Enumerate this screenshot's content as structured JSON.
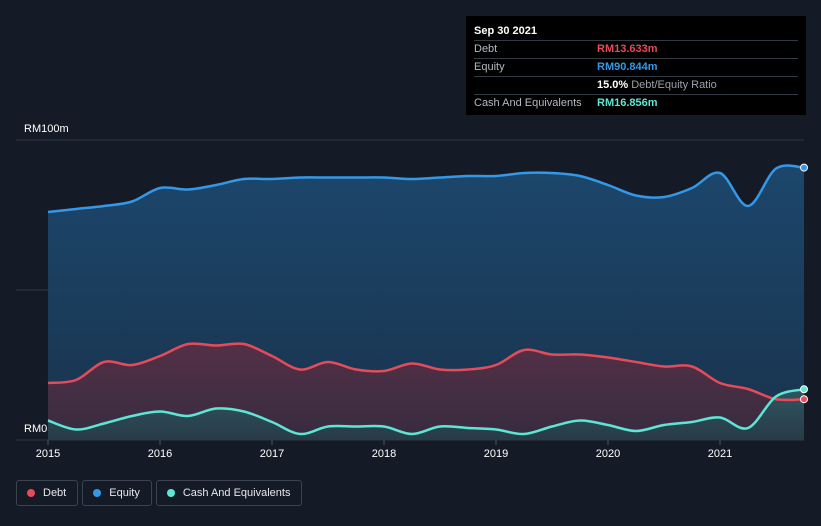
{
  "tooltip": {
    "date": "Sep 30 2021",
    "rows": [
      {
        "label": "Debt",
        "value": "RM13.633m",
        "color": "#e64b5a"
      },
      {
        "label": "Equity",
        "value": "RM90.844m",
        "color": "#3498e8"
      },
      {
        "label": "",
        "value": "15.0%",
        "sub": "Debt/Equity Ratio",
        "color": "#ffffff"
      },
      {
        "label": "Cash And Equivalents",
        "value": "RM16.856m",
        "color": "#5ee6d5"
      }
    ]
  },
  "legend": [
    {
      "label": "Debt",
      "color": "#e64b5a"
    },
    {
      "label": "Equity",
      "color": "#3498e8"
    },
    {
      "label": "Cash And Equivalents",
      "color": "#5ee6d5"
    }
  ],
  "chart_data": {
    "type": "area",
    "ylabel_top": "RM100m",
    "ylabel_bottom": "RM0",
    "ylim": [
      0,
      100
    ],
    "x_ticks": [
      "2015",
      "2016",
      "2017",
      "2018",
      "2019",
      "2020",
      "2021"
    ],
    "grid": true,
    "legend_position": "bottom-left",
    "x": [
      2015.0,
      2015.25,
      2015.5,
      2015.75,
      2016.0,
      2016.25,
      2016.5,
      2016.75,
      2017.0,
      2017.25,
      2017.5,
      2017.75,
      2018.0,
      2018.25,
      2018.5,
      2018.75,
      2019.0,
      2019.25,
      2019.5,
      2019.75,
      2020.0,
      2020.25,
      2020.5,
      2020.75,
      2021.0,
      2021.25,
      2021.5,
      2021.75
    ],
    "series": [
      {
        "name": "Debt",
        "color": "#e64b5a",
        "values": [
          19,
          20,
          26,
          25,
          28,
          32,
          31.5,
          32,
          28,
          23.5,
          26,
          23.5,
          23,
          25.5,
          23.5,
          23.5,
          25,
          30,
          28.5,
          28.5,
          27.5,
          26,
          24.5,
          24.5,
          19,
          17,
          13.6,
          13.6
        ]
      },
      {
        "name": "Equity",
        "color": "#3498e8",
        "values": [
          76,
          77,
          78,
          79.5,
          84,
          83.5,
          85,
          87,
          87,
          87.5,
          87.5,
          87.5,
          87.5,
          87,
          87.5,
          88,
          88,
          89,
          89,
          88,
          85,
          81.5,
          81,
          84,
          89,
          78,
          90.5,
          90.8
        ]
      },
      {
        "name": "Cash And Equivalents",
        "color": "#5ee6d5",
        "values": [
          6.5,
          3.5,
          5.5,
          8,
          9.5,
          8,
          10.5,
          9.5,
          6,
          2,
          4.5,
          4.5,
          4.5,
          2,
          4.5,
          4,
          3.5,
          2,
          4.5,
          6.5,
          5,
          3,
          5,
          6,
          7.5,
          4,
          14.5,
          16.9
        ]
      }
    ]
  }
}
